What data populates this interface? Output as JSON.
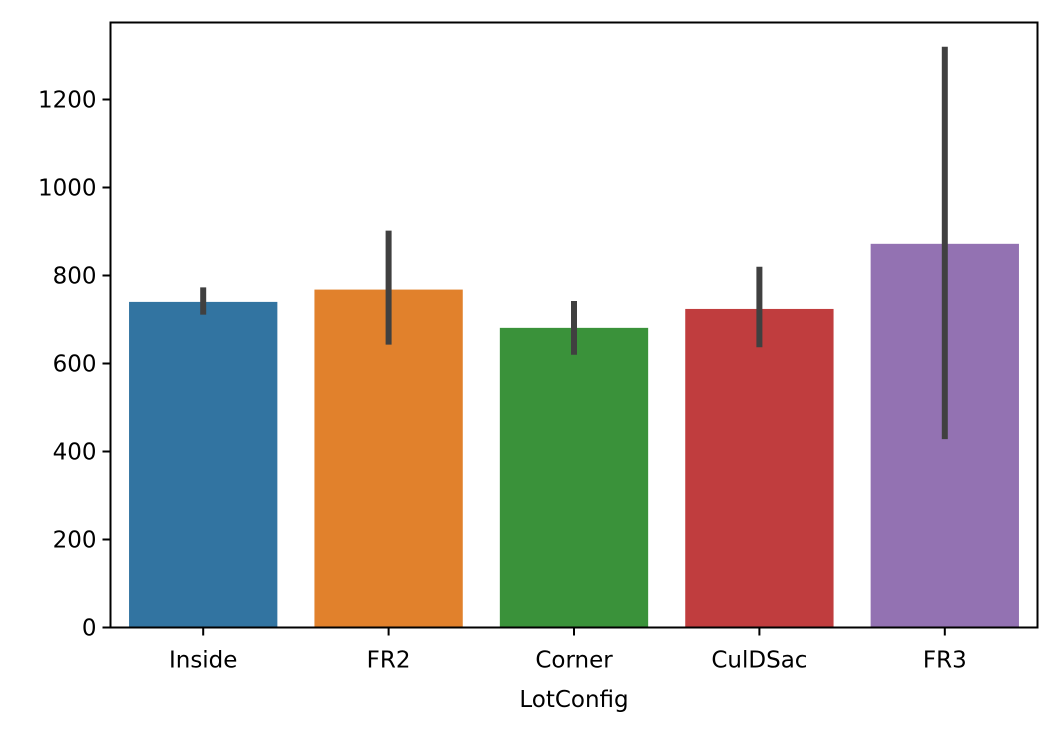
{
  "chart_data": {
    "type": "bar",
    "title": "",
    "xlabel": "LotConfig",
    "ylabel": "",
    "categories": [
      "Inside",
      "FR2",
      "Corner",
      "CulDSac",
      "FR3"
    ],
    "values": [
      740,
      768,
      681,
      724,
      872
    ],
    "error_low": [
      711,
      643,
      620,
      637,
      428
    ],
    "error_high": [
      773,
      902,
      742,
      820,
      1320
    ],
    "colors": [
      "#3274a1",
      "#e1812c",
      "#3a923a",
      "#c03d3e",
      "#9372b2"
    ],
    "error_bar_color": "#404040",
    "ylim": [
      0,
      1375
    ],
    "yticks": [
      0,
      200,
      400,
      600,
      800,
      1000,
      1200
    ],
    "grid": false,
    "legend": "none"
  }
}
